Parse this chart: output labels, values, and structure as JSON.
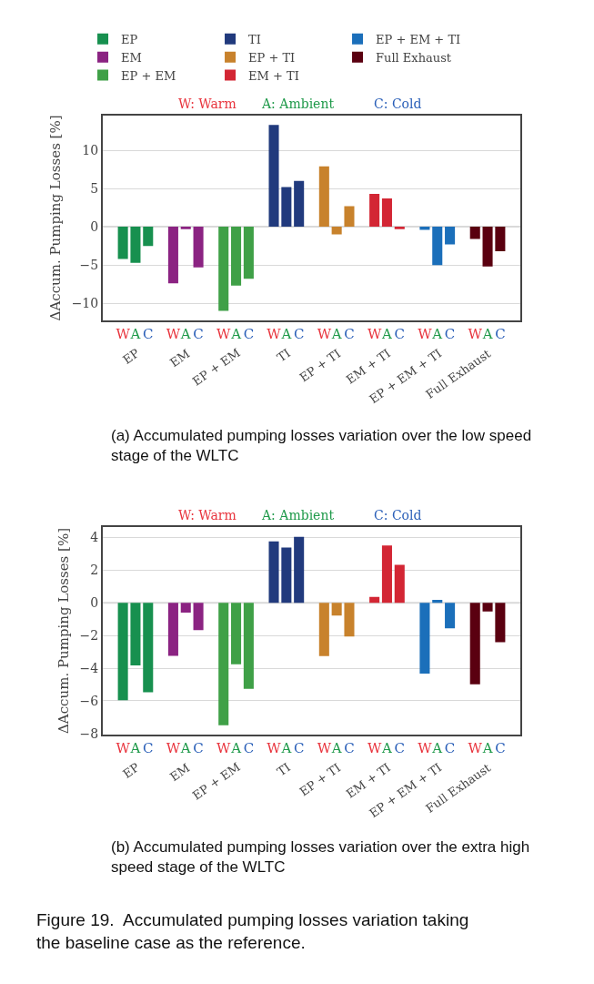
{
  "chart_data": [
    {
      "type": "bar",
      "ylabel": "ΔAccum. Pumping Losses [%]",
      "categories": [
        "W",
        "A",
        "C",
        "W",
        "A",
        "C",
        "W",
        "A",
        "C",
        "W",
        "A",
        "C",
        "W",
        "A",
        "C",
        "W",
        "A",
        "C",
        "W",
        "A",
        "C",
        "W",
        "A",
        "C"
      ],
      "series": [
        {
          "name": "EP",
          "color": "#17904f",
          "values": [
            -4.2,
            -4.7,
            -2.5,
            null,
            null,
            null,
            null,
            null,
            null,
            null,
            null,
            null,
            null,
            null,
            null,
            null,
            null,
            null,
            null,
            null,
            null,
            null,
            null,
            null
          ]
        },
        {
          "name": "EM",
          "color": "#8b2382",
          "values": [
            null,
            null,
            null,
            -7.4,
            -0.3,
            -5.3,
            null,
            null,
            null,
            null,
            null,
            null,
            null,
            null,
            null,
            null,
            null,
            null,
            null,
            null,
            null,
            null,
            null,
            null
          ]
        },
        {
          "name": "EP + EM",
          "color": "#3fa047",
          "values": [
            null,
            null,
            null,
            null,
            null,
            null,
            -11.0,
            -7.7,
            -6.8,
            null,
            null,
            null,
            null,
            null,
            null,
            null,
            null,
            null,
            null,
            null,
            null,
            null,
            null,
            null
          ]
        },
        {
          "name": "TI",
          "color": "#213a7d",
          "values": [
            null,
            null,
            null,
            null,
            null,
            null,
            null,
            null,
            null,
            13.3,
            5.2,
            6.0,
            null,
            null,
            null,
            null,
            null,
            null,
            null,
            null,
            null,
            null,
            null,
            null
          ]
        },
        {
          "name": "EP + TI",
          "color": "#c8822c",
          "values": [
            null,
            null,
            null,
            null,
            null,
            null,
            null,
            null,
            null,
            null,
            null,
            null,
            7.9,
            -1.0,
            2.7,
            null,
            null,
            null,
            null,
            null,
            null,
            null,
            null,
            null
          ]
        },
        {
          "name": "EM + TI",
          "color": "#d32634",
          "values": [
            null,
            null,
            null,
            null,
            null,
            null,
            null,
            null,
            null,
            null,
            null,
            null,
            null,
            null,
            null,
            4.3,
            3.7,
            -0.3,
            null,
            null,
            null,
            null,
            null,
            null
          ]
        },
        {
          "name": "EP + EM + TI",
          "color": "#1b6fba",
          "values": [
            null,
            null,
            null,
            null,
            null,
            null,
            null,
            null,
            null,
            null,
            null,
            null,
            null,
            null,
            null,
            null,
            null,
            null,
            -0.4,
            -5.0,
            -2.3,
            null,
            null,
            null
          ]
        },
        {
          "name": "Full Exhaust",
          "color": "#5a0010",
          "values": [
            null,
            null,
            null,
            null,
            null,
            null,
            null,
            null,
            null,
            null,
            null,
            null,
            null,
            null,
            null,
            null,
            null,
            null,
            null,
            null,
            null,
            -1.6,
            -5.2,
            -3.2
          ]
        }
      ],
      "ylim": [
        -12.2,
        14.5
      ],
      "yticks": [
        {
          "value": -10,
          "label": "−10"
        },
        {
          "value": -5,
          "label": "−5"
        },
        0,
        5,
        10
      ],
      "grid": "y",
      "legend": "top",
      "annotations": [
        "W: Warm",
        "A: Ambient",
        "C: Cold",
        "EP",
        "EM",
        "EP + EM",
        "TI",
        "EP + TI",
        "EM + TI",
        "EP + EM + TI",
        "Full Exhaust",
        "(a) Accumulated pumping losses variation over the low speed stage of the WLTC"
      ]
    },
    {
      "type": "bar",
      "ylabel": "ΔAccum. Pumping Losses [%]",
      "categories": [
        "W",
        "A",
        "C",
        "W",
        "A",
        "C",
        "W",
        "A",
        "C",
        "W",
        "A",
        "C",
        "W",
        "A",
        "C",
        "W",
        "A",
        "C",
        "W",
        "A",
        "C",
        "W",
        "A",
        "C"
      ],
      "series": [
        {
          "color": "#17904f",
          "values": [
            -5.96,
            -3.83,
            -5.48,
            null,
            null,
            null,
            null,
            null,
            null,
            null,
            null,
            null,
            null,
            null,
            null,
            null,
            null,
            null,
            null,
            null,
            null,
            null,
            null,
            null
          ]
        },
        {
          "color": "#8b2382",
          "values": [
            null,
            null,
            null,
            -3.24,
            -0.59,
            -1.67,
            null,
            null,
            null,
            null,
            null,
            null,
            null,
            null,
            null,
            null,
            null,
            null,
            null,
            null,
            null,
            null,
            null,
            null
          ]
        },
        {
          "color": "#3fa047",
          "values": [
            null,
            null,
            null,
            null,
            null,
            null,
            -7.5,
            -3.76,
            -5.26,
            null,
            null,
            null,
            null,
            null,
            null,
            null,
            null,
            null,
            null,
            null,
            null,
            null,
            null,
            null
          ]
        },
        {
          "color": "#213a7d",
          "values": [
            null,
            null,
            null,
            null,
            null,
            null,
            null,
            null,
            null,
            3.76,
            3.39,
            4.04,
            null,
            null,
            null,
            null,
            null,
            null,
            null,
            null,
            null,
            null,
            null,
            null
          ]
        },
        {
          "color": "#c8822c",
          "values": [
            null,
            null,
            null,
            null,
            null,
            null,
            null,
            null,
            null,
            null,
            null,
            null,
            -3.26,
            -0.78,
            -2.06,
            null,
            null,
            null,
            null,
            null,
            null,
            null,
            null,
            null
          ]
        },
        {
          "color": "#d32634",
          "values": [
            null,
            null,
            null,
            null,
            null,
            null,
            null,
            null,
            null,
            null,
            null,
            null,
            null,
            null,
            null,
            0.37,
            3.52,
            2.33,
            null,
            null,
            null,
            null,
            null,
            null
          ]
        },
        {
          "color": "#1b6fba",
          "values": [
            null,
            null,
            null,
            null,
            null,
            null,
            null,
            null,
            null,
            null,
            null,
            null,
            null,
            null,
            null,
            null,
            null,
            null,
            -4.33,
            0.19,
            -1.56,
            null,
            null,
            null
          ]
        },
        {
          "color": "#5a0010",
          "values": [
            null,
            null,
            null,
            null,
            null,
            null,
            null,
            null,
            null,
            null,
            null,
            null,
            null,
            null,
            null,
            null,
            null,
            null,
            null,
            null,
            null,
            -4.98,
            -0.52,
            -2.41
          ]
        }
      ],
      "ylim": [
        -8.05,
        4.63
      ],
      "yticks": [
        {
          "value": -8,
          "label": "−8"
        },
        {
          "value": -6,
          "label": "−6"
        },
        {
          "value": -4,
          "label": "−4"
        },
        {
          "value": -2,
          "label": "−2"
        },
        0,
        2,
        4
      ],
      "grid": "y",
      "annotations": [
        "W: Warm",
        "A: Ambient",
        "C: Cold",
        "EP",
        "EM",
        "EP + EM",
        "TI",
        "EP + TI",
        "EM + TI",
        "EP + EM + TI",
        "Full Exhaust",
        "(b) Accumulated pumping losses variation over the extra high speed stage of the WLTC",
        "Figure 19.  Accumulated pumping losses variation taking the baseline case as the reference."
      ]
    }
  ]
}
